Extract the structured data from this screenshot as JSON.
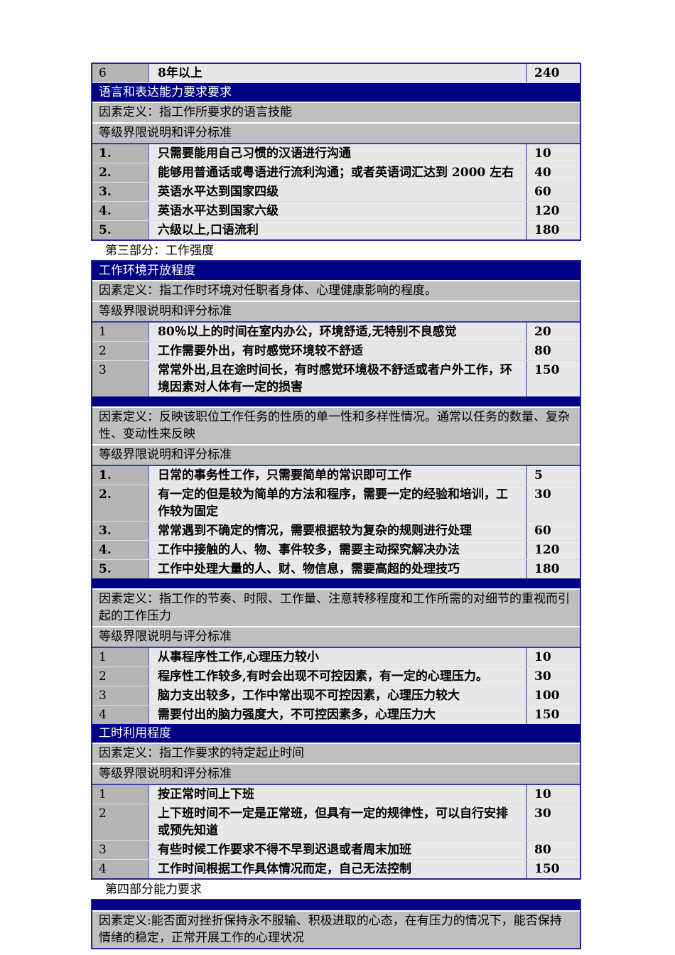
{
  "colors": {
    "header_bar": "#000084",
    "definition_row": "#bfbfbf",
    "level_number_cell": "#b5b5b5",
    "content_cell": "#e8e8e8",
    "grid_line": "#8585d4",
    "table_border": "#23239b",
    "header_text": "#ffffff"
  },
  "doc": {
    "carry_row": {
      "num": "6",
      "text": "8年以上",
      "score": "240"
    },
    "lang": {
      "bar": "语言和表达能力要求要求",
      "definition": "因素定义：指工作所要求的语言技能",
      "criteria": "等级界限说明和评分标准",
      "rows": [
        {
          "num": "1.",
          "text": "只需要能用自己习惯的汉语进行沟通",
          "score": "10"
        },
        {
          "num": "2.",
          "text": "能够用普通话或粤语进行流利沟通；或者英语词汇达到 2000 左右",
          "score": "40"
        },
        {
          "num": "3.",
          "text": "英语水平达到国家四级",
          "score": "60"
        },
        {
          "num": "4.",
          "text": "英语水平达到国家六级",
          "score": "120"
        },
        {
          "num": "5.",
          "text": "六级以上,口语流利",
          "score": "180"
        }
      ]
    },
    "part3_heading": "第三部分：工作强度",
    "sections": [
      {
        "bar": "工作环境开放程度",
        "definition": "因素定义：指工作时环境对任职者身体、心理健康影响的程度。",
        "criteria": "等级界限说明和评分标准",
        "rows": [
          {
            "num": "1",
            "text": "80％以上的时间在室内办公，环境舒适,无特别不良感觉",
            "score": "20"
          },
          {
            "num": "2",
            "text": "工作需要外出，有时感觉环境较不舒适",
            "score": "80"
          },
          {
            "num": "3",
            "text": "常常外出,且在途时间长，有时感觉环境极不舒适或者户外工作，环境因素对人体有一定的损害",
            "score": "150"
          }
        ]
      },
      {
        "bar": "",
        "definition": "因素定义：反映该职位工作任务的性质的单一性和多样性情况。通常以任务的数量、复杂性、变动性来反映",
        "criteria": "等级界限说明和评分标准",
        "rows": [
          {
            "num": "1.",
            "text": "日常的事务性工作，只需要简单的常识即可工作",
            "score": "5"
          },
          {
            "num": "2.",
            "text": "有一定的但是较为简单的方法和程序，需要一定的经验和培训，工作较为固定",
            "score": "30"
          },
          {
            "num": "3.",
            "text": "常常遇到不确定的情况，需要根据较为复杂的规则进行处理",
            "score": "60"
          },
          {
            "num": "4.",
            "text": "工作中接触的人、物、事件较多，需要主动探究解决办法",
            "score": "120"
          },
          {
            "num": "5.",
            "text": "工作中处理大量的人、财、物信息，需要高超的处理技巧",
            "score": "180"
          }
        ]
      },
      {
        "bar": "",
        "definition": "因素定义：指工作的节奏、时限、工作量、注意转移程度和工作所需的对细节的重视而引起的工作压力",
        "criteria": "等级界限说明与评分标准",
        "rows": [
          {
            "num": "1",
            "text": "从事程序性工作,心理压力较小",
            "score": "10"
          },
          {
            "num": "2",
            "text": "程序性工作较多,有时会出现不可控因素，有一定的心理压力。",
            "score": "30"
          },
          {
            "num": "3",
            "text": "脑力支出较多，工作中常出现不可控因素，心理压力较大",
            "score": "100"
          },
          {
            "num": "4",
            "text": "需要付出的脑力强度大，不可控因素多，心理压力大",
            "score": "150"
          }
        ]
      },
      {
        "bar": "工时利用程度",
        "definition": "因素定义：指工作要求的特定起止时间",
        "criteria": "等级界限说明和评分标准",
        "rows": [
          {
            "num": "1",
            "text": "按正常时间上下班",
            "score": "10"
          },
          {
            "num": "2",
            "text": "上下班时间不一定是正常班，但具有一定的规律性，可以自行安排或预先知道",
            "score": "30"
          },
          {
            "num": "3",
            "text": "有些时候工作要求不得不早到迟退或者周末加班",
            "score": "80"
          },
          {
            "num": "4",
            "text": "工作时间根据工作具体情况而定，自己无法控制",
            "score": "150"
          }
        ]
      }
    ],
    "part4_heading": "第四部分能力要求",
    "part4": {
      "bar": "",
      "definition": "因素定义:能否面对挫折保持永不服输、积极进取的心态，在有压力的情况下，能否保持情绪的稳定，正常开展工作的心理状况"
    }
  }
}
